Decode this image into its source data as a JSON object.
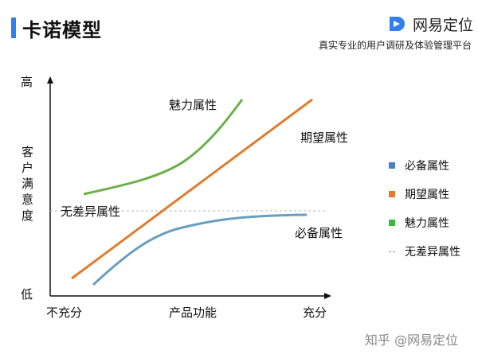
{
  "header": {
    "title": "卡诺模型",
    "brand_name": "网易定位",
    "brand_slogan": "真实专业的用户调研及体验管理平台"
  },
  "axes": {
    "y_top": "高",
    "y_label": "客户满意度",
    "y_bottom": "低",
    "x_left": "不充分",
    "x_mid": "产品功能",
    "x_right": "充分"
  },
  "curve_labels": {
    "attractive": "魅力属性",
    "performance": "期望属性",
    "indifferent": "无差异属性",
    "must_be": "必备属性"
  },
  "legend": [
    {
      "label": "必备属性",
      "color": "#4a7fc1",
      "style": "square"
    },
    {
      "label": "期望属性",
      "color": "#e07b2b",
      "style": "square"
    },
    {
      "label": "魅力属性",
      "color": "#3db83d",
      "style": "square"
    },
    {
      "label": "无差异属性",
      "color": "#9a9a9a",
      "style": "dash"
    }
  ],
  "colors": {
    "must_be": "#6a9fc0",
    "performance": "#e07b2b",
    "attractive": "#6bb04a",
    "indifferent": "#b0b0b0",
    "axis": "#111111",
    "title_accent": "#2f80ed"
  },
  "watermark": "知乎 @网易定位"
}
